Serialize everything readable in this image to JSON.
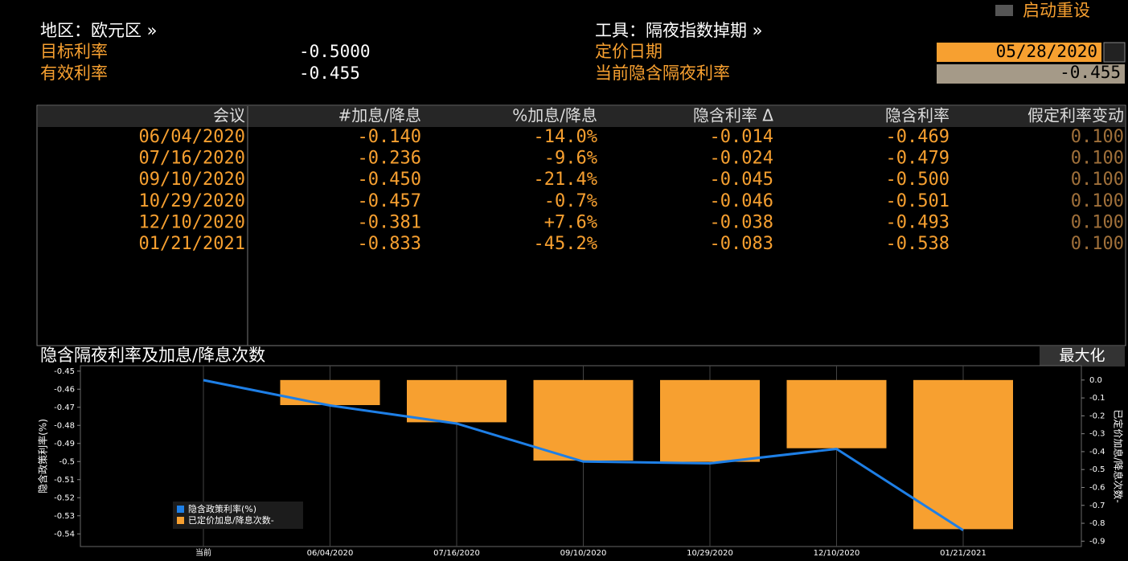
{
  "header": {
    "region_label": "地区：欧元区 »",
    "target_rate_label": "目标利率",
    "target_rate": "-0.5000",
    "effective_rate_label": "有效利率",
    "effective_rate": "-0.455",
    "instrument_label": "工具：隔夜指数掉期 »",
    "pricing_date_label": "定价日期",
    "pricing_date": "05/28/2020",
    "implied_rate_label": "当前隐含隔夜利率",
    "implied_rate": "-0.455",
    "reset_button": "启动重设"
  },
  "table": {
    "columns": [
      "会议",
      "#加息/降息",
      "%加息/降息",
      "隐含利率 Δ",
      "隐含利率",
      "假定利率变动"
    ],
    "rows": [
      [
        "06/04/2020",
        "-0.140",
        "-14.0%",
        "-0.014",
        "-0.469",
        "0.100"
      ],
      [
        "07/16/2020",
        "-0.236",
        "-9.6%",
        "-0.024",
        "-0.479",
        "0.100"
      ],
      [
        "09/10/2020",
        "-0.450",
        "-21.4%",
        "-0.045",
        "-0.500",
        "0.100"
      ],
      [
        "10/29/2020",
        "-0.457",
        "-0.7%",
        "-0.046",
        "-0.501",
        "0.100"
      ],
      [
        "12/10/2020",
        "-0.381",
        "+7.6%",
        "-0.038",
        "-0.493",
        "0.100"
      ],
      [
        "01/21/2021",
        "-0.833",
        "-45.2%",
        "-0.083",
        "-0.538",
        "0.100"
      ]
    ]
  },
  "maximize_button": "最大化",
  "chart_data": {
    "type": "combo",
    "title": "隐含隔夜利率及加息/降息次数",
    "y_label": "隐含政策利率(%)",
    "y2_label": "已定价加息/降息次数-",
    "categories": [
      "当前",
      "06/04/2020",
      "07/16/2020",
      "09/10/2020",
      "10/29/2020",
      "12/10/2020",
      "01/21/2021"
    ],
    "series": [
      {
        "name": "隐含政策利率(%)",
        "type": "line",
        "color": "#1e7fe6",
        "values": [
          -0.455,
          -0.469,
          -0.479,
          -0.5,
          -0.501,
          -0.493,
          -0.538
        ]
      },
      {
        "name": "已定价加息/降息次数-",
        "type": "bar",
        "axis": "y2",
        "color": "#f7a030",
        "values": [
          null,
          -0.14,
          -0.236,
          -0.45,
          -0.457,
          -0.381,
          -0.833
        ]
      }
    ],
    "ylim": [
      -0.547,
      -0.447
    ],
    "yticks": [
      -0.45,
      -0.46,
      -0.47,
      -0.48,
      -0.49,
      -0.5,
      -0.51,
      -0.52,
      -0.53,
      -0.54
    ],
    "y2lim": [
      -0.93,
      0.08
    ],
    "y2ticks": [
      {
        "value": 0,
        "label": "0.0"
      },
      -0.1,
      -0.2,
      -0.3,
      -0.4,
      -0.5,
      -0.6,
      -0.7,
      -0.8,
      -0.9
    ],
    "grid": "vertical"
  }
}
